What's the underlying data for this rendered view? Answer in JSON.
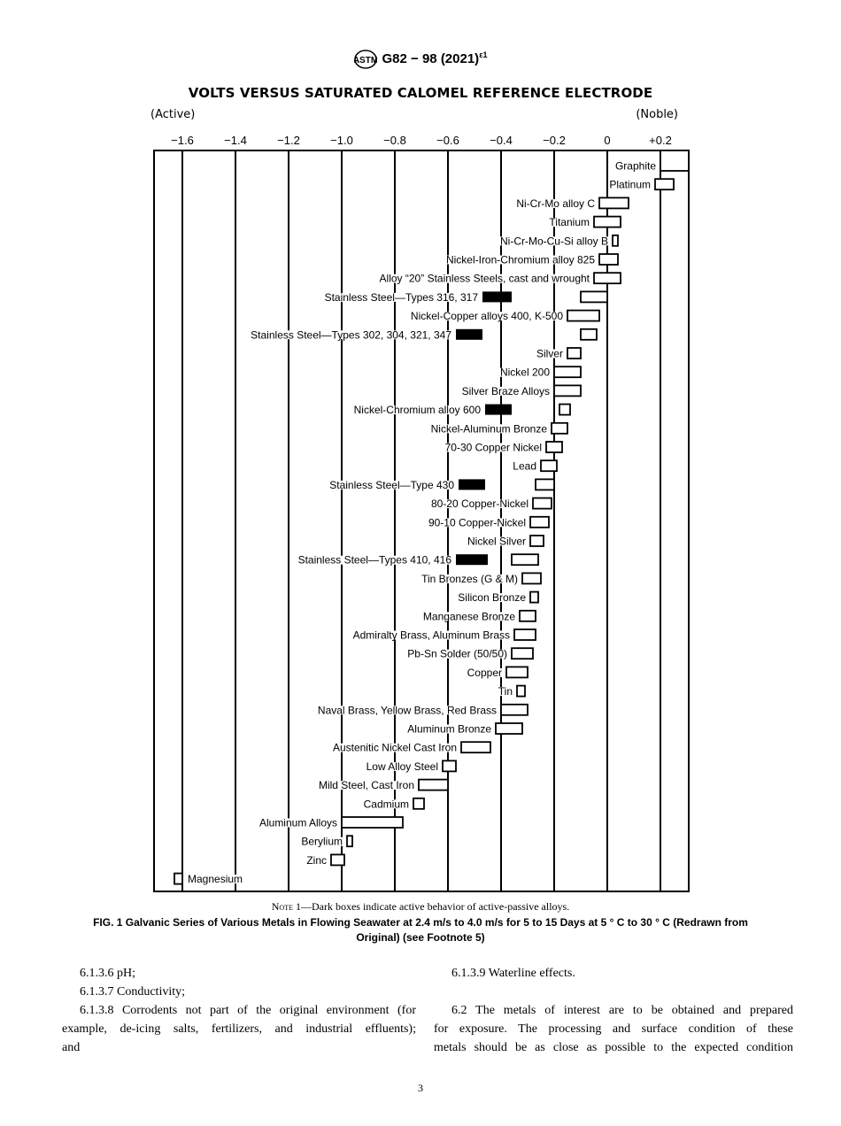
{
  "header": {
    "logo": "ASTM",
    "designation": "G82 − 98 (2021)",
    "superscript": "ε1"
  },
  "chart_data": {
    "type": "bar",
    "subtype": "floating-range",
    "title": "VOLTS VERSUS SATURATED CALOMEL REFERENCE ELECTRODE",
    "left_label": "(Active)",
    "right_label": "(Noble)",
    "x_ticks": [
      {
        "value": -1.6,
        "label": "−1.6"
      },
      {
        "value": -1.4,
        "label": "−1.4"
      },
      {
        "value": -1.2,
        "label": "−1.2"
      },
      {
        "value": -1.0,
        "label": "−1.0"
      },
      {
        "value": -0.8,
        "label": "−0.8"
      },
      {
        "value": -0.6,
        "label": "−0.6"
      },
      {
        "value": -0.4,
        "label": "−0.4"
      },
      {
        "value": -0.2,
        "label": "−0.2"
      },
      {
        "value": 0,
        "label": "0"
      },
      {
        "value": 0.2,
        "label": "+0.2"
      }
    ],
    "xlim": [
      -1.7,
      0.31
    ],
    "grid": true,
    "legend_note": "Dark boxes indicate active behavior of active-passive alloys.",
    "colors": {
      "passive": "#ffffff",
      "active": "#000000"
    },
    "series": [
      {
        "name": "Graphite",
        "range": [
          0.2,
          0.31
        ]
      },
      {
        "name": "Platinum",
        "range": [
          0.18,
          0.25
        ]
      },
      {
        "name": "Ni-Cr-Mo alloy C",
        "range": [
          -0.03,
          0.08
        ]
      },
      {
        "name": "Titanium",
        "range": [
          -0.05,
          0.05
        ]
      },
      {
        "name": "Ni-Cr-Mo-Cu-Si alloy B",
        "range": [
          0.02,
          0.04
        ]
      },
      {
        "name": "Nickel-Iron-Chromium alloy 825",
        "range": [
          -0.03,
          0.04
        ]
      },
      {
        "name": "Alloy “20” Stainless Steels, cast and wrought",
        "range": [
          -0.05,
          0.05
        ]
      },
      {
        "name": "Stainless Steel—Types 316, 317",
        "range": [
          -0.1,
          0.0
        ],
        "active": [
          -0.47,
          -0.36
        ]
      },
      {
        "name": "Nickel-Copper alloys 400, K-500",
        "range": [
          -0.15,
          -0.03
        ]
      },
      {
        "name": "Stainless Steel—Types 302, 304, 321, 347",
        "range": [
          -0.1,
          -0.04
        ],
        "active": [
          -0.57,
          -0.47
        ]
      },
      {
        "name": "Silver",
        "range": [
          -0.15,
          -0.1
        ]
      },
      {
        "name": "Nickel 200",
        "range": [
          -0.2,
          -0.1
        ]
      },
      {
        "name": "Silver Braze Alloys",
        "range": [
          -0.2,
          -0.1
        ]
      },
      {
        "name": "Nickel-Chromium alloy 600",
        "range": [
          -0.18,
          -0.14
        ],
        "active": [
          -0.46,
          -0.36
        ]
      },
      {
        "name": "Nickel-Aluminum Bronze",
        "range": [
          -0.21,
          -0.15
        ]
      },
      {
        "name": "70-30 Copper Nickel",
        "range": [
          -0.23,
          -0.17
        ]
      },
      {
        "name": "Lead",
        "range": [
          -0.25,
          -0.19
        ]
      },
      {
        "name": "Stainless Steel—Type 430",
        "range": [
          -0.27,
          -0.2
        ],
        "active": [
          -0.56,
          -0.46
        ]
      },
      {
        "name": "80-20 Copper-Nickel",
        "range": [
          -0.28,
          -0.21
        ]
      },
      {
        "name": "90-10 Copper-Nickel",
        "range": [
          -0.29,
          -0.22
        ]
      },
      {
        "name": "Nickel Silver",
        "range": [
          -0.29,
          -0.24
        ]
      },
      {
        "name": "Stainless Steel—Types 410, 416",
        "range": [
          -0.36,
          -0.26
        ],
        "active": [
          -0.57,
          -0.45
        ]
      },
      {
        "name": "Tin Bronzes (G & M)",
        "range": [
          -0.32,
          -0.25
        ]
      },
      {
        "name": "Silicon Bronze",
        "range": [
          -0.29,
          -0.26
        ]
      },
      {
        "name": "Manganese Bronze",
        "range": [
          -0.33,
          -0.27
        ]
      },
      {
        "name": "Admiralty Brass, Aluminum Brass",
        "range": [
          -0.35,
          -0.27
        ]
      },
      {
        "name": "Pb-Sn Solder (50/50)",
        "range": [
          -0.36,
          -0.28
        ]
      },
      {
        "name": "Copper",
        "range": [
          -0.38,
          -0.3
        ]
      },
      {
        "name": "Tin",
        "range": [
          -0.34,
          -0.31
        ]
      },
      {
        "name": "Naval Brass, Yellow Brass, Red Brass",
        "range": [
          -0.4,
          -0.3
        ]
      },
      {
        "name": "Aluminum Bronze",
        "range": [
          -0.42,
          -0.32
        ]
      },
      {
        "name": "Austenitic Nickel Cast Iron",
        "range": [
          -0.55,
          -0.44
        ]
      },
      {
        "name": "Low Alloy Steel",
        "range": [
          -0.62,
          -0.57
        ]
      },
      {
        "name": "Mild Steel, Cast Iron",
        "range": [
          -0.71,
          -0.6
        ]
      },
      {
        "name": "Cadmium",
        "range": [
          -0.73,
          -0.69
        ]
      },
      {
        "name": "Aluminum Alloys",
        "range": [
          -1.0,
          -0.77
        ]
      },
      {
        "name": "Berylium",
        "range": [
          -0.98,
          -0.96
        ]
      },
      {
        "name": "Zinc",
        "range": [
          -1.04,
          -0.99
        ]
      },
      {
        "name": "Magnesium",
        "range": [
          -1.63,
          -1.6
        ],
        "label_side": "right"
      }
    ]
  },
  "figure": {
    "note_prefix": "Note 1",
    "note_text": "—Dark boxes indicate active behavior of active-passive alloys.",
    "caption_line1": "FIG. 1 Galvanic Series of Various Metals in Flowing Seawater at 2.4 m/s to 4.0 m/s for 5 to 15 Days at 5 ° C to 30 ° C (Redrawn from",
    "caption_line2": "Original) (see Footnote 5)"
  },
  "body": {
    "left": [
      "6.1.3.6 pH;",
      "6.1.3.7 Conductivity;",
      "6.1.3.8 Corrodents not part of the original environment (for",
      "example, de-icing salts, fertilizers, and industrial effluents);",
      "and"
    ],
    "right": [
      "6.1.3.9 Waterline effects.",
      "6.2 The metals of interest are to be obtained and prepared",
      "for exposure. The processing and surface condition of these",
      "metals should be as close as possible to the expected condition"
    ]
  },
  "page_number": "3"
}
